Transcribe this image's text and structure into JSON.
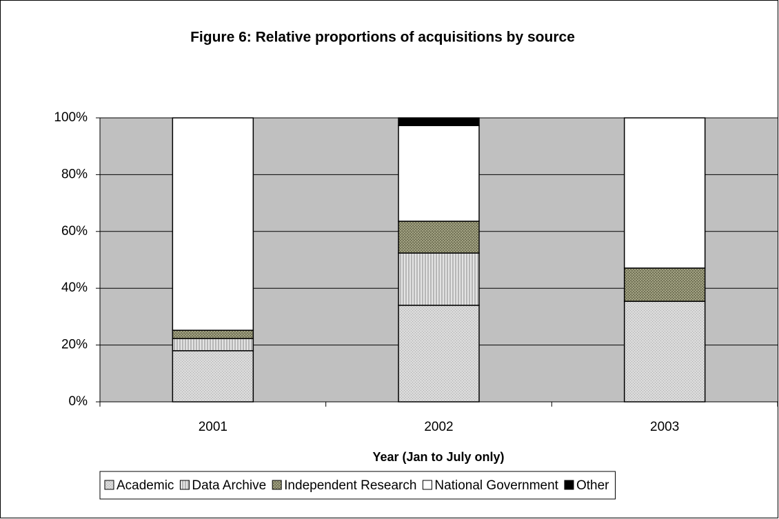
{
  "chart_data": {
    "type": "stacked_bar",
    "title": "Figure 6: Relative proportions of acquisitions by source",
    "x_label": "Year (Jan to July only)",
    "categories": [
      "2001",
      "2002",
      "2003"
    ],
    "series": [
      {
        "name": "Academic",
        "color": "#d9d9d9",
        "values": [
          18,
          34,
          35.4
        ]
      },
      {
        "name": "Data Archive",
        "color": "#e4e4e4",
        "values": [
          4.3,
          18.4,
          0
        ]
      },
      {
        "name": "Independent Research",
        "color": "#8c8c6e",
        "values": [
          2.9,
          11.2,
          11.7
        ]
      },
      {
        "name": "National Government",
        "color": "#ffffff",
        "values": [
          74.8,
          33.7,
          52.9
        ]
      },
      {
        "name": "Other",
        "color": "#000000",
        "values": [
          0,
          2.7,
          0
        ]
      }
    ],
    "ylim": [
      0,
      100
    ],
    "yticks": [
      {
        "value": 0,
        "label": "0%"
      },
      {
        "value": 20,
        "label": "20%"
      },
      {
        "value": 40,
        "label": "40%"
      },
      {
        "value": 60,
        "label": "60%"
      },
      {
        "value": 80,
        "label": "80%"
      },
      {
        "value": 100,
        "label": "100%"
      }
    ],
    "grid": true,
    "plot_background": "#c0c0c0",
    "legend": "bottom"
  }
}
